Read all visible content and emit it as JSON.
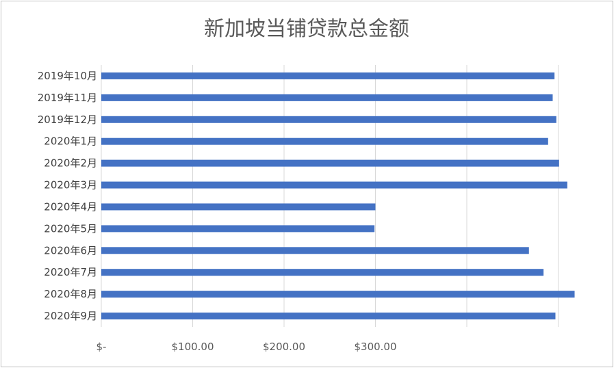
{
  "chart_data": {
    "type": "bar",
    "orientation": "horizontal",
    "title": "新加坡当铺贷款总金额",
    "categories": [
      "2019年10月",
      "2019年11月",
      "2019年12月",
      "2020年1月",
      "2020年2月",
      "2020年3月",
      "2020年4月",
      "2020年5月",
      "2020年6月",
      "2020年7月",
      "2020年8月",
      "2020年9月"
    ],
    "values": [
      496,
      494,
      498,
      489,
      501,
      510,
      300,
      299,
      468,
      484,
      518,
      497
    ],
    "xticks": [
      {
        "value": 0,
        "label": "$-"
      },
      {
        "value": 100,
        "label": "$100.00"
      },
      {
        "value": 200,
        "label": "$200.00"
      },
      {
        "value": 300,
        "label": "$300.00"
      },
      {
        "value": 400,
        "label": ""
      },
      {
        "value": 500,
        "label": ""
      }
    ],
    "xlim": [
      0,
      500
    ],
    "grid": true,
    "legend": "none",
    "bar_color": "#4472c4"
  }
}
